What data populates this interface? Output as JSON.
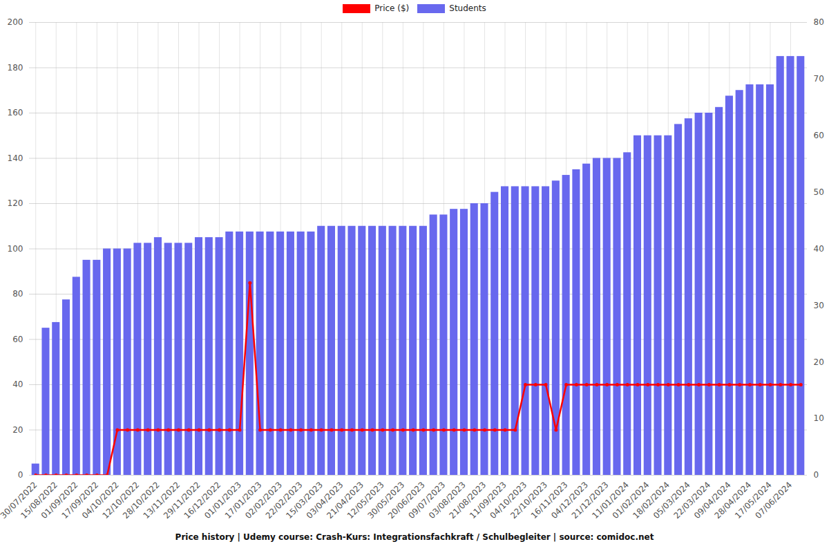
{
  "chart_data": {
    "type": "bar",
    "title": "Price history | Udemy course: Crash-Kurs: Integrationsfachkraft / Schulbegleiter | source: comidoc.net",
    "categories": [
      "30/07/2022",
      null,
      "15/08/2022",
      null,
      "01/09/2022",
      null,
      "17/09/2022",
      null,
      "04/10/2022",
      null,
      "12/10/2022",
      null,
      "28/10/2022",
      null,
      "13/11/2022",
      null,
      "29/11/2022",
      null,
      "16/12/2022",
      null,
      "01/01/2023",
      null,
      "17/01/2023",
      null,
      "02/02/2023",
      null,
      "22/02/2023",
      null,
      "15/03/2023",
      null,
      "03/04/2023",
      null,
      "21/04/2023",
      null,
      "12/05/2023",
      null,
      "30/05/2023",
      null,
      "20/06/2023",
      null,
      "09/07/2023",
      null,
      "03/08/2023",
      null,
      "21/08/2023",
      null,
      "11/09/2023",
      null,
      "04/10/2023",
      null,
      "22/10/2023",
      null,
      "16/11/2023",
      null,
      "04/12/2023",
      null,
      "21/12/2023",
      null,
      "11/01/2024",
      null,
      "01/02/2024",
      null,
      "18/02/2024",
      null,
      "05/03/2024",
      null,
      "22/03/2024",
      null,
      "09/04/2024",
      null,
      "28/04/2024",
      null,
      "17/05/2024",
      null,
      "07/06/2024",
      null
    ],
    "series": [
      {
        "name": "Price ($)",
        "type": "line",
        "color": "#ff0000",
        "marker": "circle",
        "values": [
          0,
          0,
          0,
          0,
          0,
          0,
          0,
          0,
          20,
          20,
          20,
          20,
          20,
          20,
          20,
          20,
          20,
          20,
          20,
          20,
          20,
          85,
          20,
          20,
          20,
          20,
          20,
          20,
          20,
          20,
          20,
          20,
          20,
          20,
          20,
          20,
          20,
          20,
          20,
          20,
          20,
          20,
          20,
          20,
          20,
          20,
          20,
          20,
          40,
          40,
          40,
          20,
          40,
          40,
          40,
          40,
          40,
          40,
          40,
          40,
          40,
          40,
          40,
          40,
          40,
          40,
          40,
          40,
          40,
          40,
          40,
          40,
          40,
          40,
          40,
          40
        ]
      },
      {
        "name": "Students",
        "type": "bar",
        "color": "#6868ee",
        "axis": "y2",
        "values": [
          2,
          26,
          27,
          31,
          35,
          38,
          38,
          40,
          40,
          40,
          41,
          41,
          42,
          41,
          41,
          41,
          42,
          42,
          42,
          43,
          43,
          43,
          43,
          43,
          43,
          43,
          43,
          43,
          44,
          44,
          44,
          44,
          44,
          44,
          44,
          44,
          44,
          44,
          44,
          46,
          46,
          47,
          47,
          48,
          48,
          50,
          51,
          51,
          51,
          51,
          51,
          52,
          53,
          54,
          55,
          56,
          56,
          56,
          57,
          60,
          60,
          60,
          60,
          62,
          63,
          64,
          64,
          65,
          67,
          68,
          69,
          69,
          69,
          74,
          74,
          74
        ]
      }
    ],
    "ylim": [
      0,
      200
    ],
    "yticks": [
      0,
      20,
      40,
      60,
      80,
      100,
      120,
      140,
      160,
      180,
      200
    ],
    "y2lim": [
      0,
      80
    ],
    "y2ticks": [
      0,
      10,
      20,
      30,
      40,
      50,
      60,
      70,
      80
    ],
    "grid": true,
    "legend": "top"
  }
}
